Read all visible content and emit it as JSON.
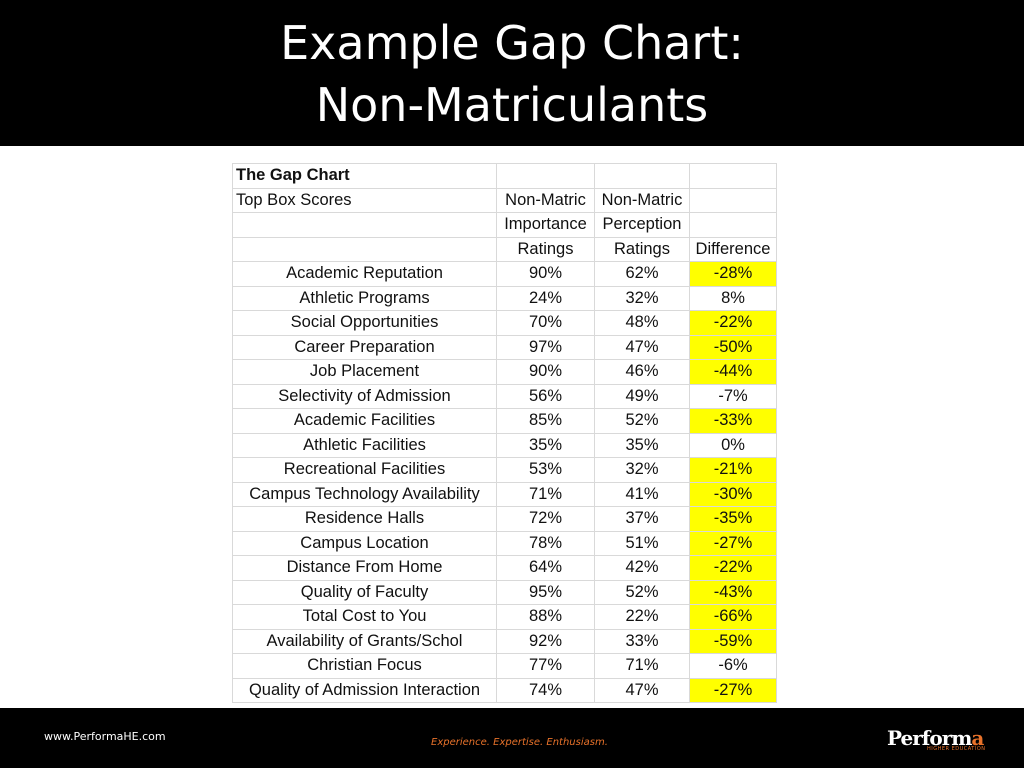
{
  "title": {
    "line1": "Example Gap Chart:",
    "line2": "Non-Matriculants"
  },
  "table": {
    "caption": "The Gap Chart",
    "header_rows": [
      [
        "Top Box Scores",
        "Non-Matric",
        "Non-Matric",
        ""
      ],
      [
        "",
        "Importance",
        "Perception",
        ""
      ],
      [
        "",
        "Ratings",
        "Ratings",
        "Difference"
      ]
    ],
    "rows": [
      {
        "label": "Academic Reputation",
        "importance": "90%",
        "perception": "62%",
        "difference": "-28%",
        "highlight": true
      },
      {
        "label": "Athletic Programs",
        "importance": "24%",
        "perception": "32%",
        "difference": "8%",
        "highlight": false
      },
      {
        "label": "Social Opportunities",
        "importance": "70%",
        "perception": "48%",
        "difference": "-22%",
        "highlight": true
      },
      {
        "label": "Career Preparation",
        "importance": "97%",
        "perception": "47%",
        "difference": "-50%",
        "highlight": true
      },
      {
        "label": "Job Placement",
        "importance": "90%",
        "perception": "46%",
        "difference": "-44%",
        "highlight": true
      },
      {
        "label": "Selectivity of Admission",
        "importance": "56%",
        "perception": "49%",
        "difference": "-7%",
        "highlight": false
      },
      {
        "label": "Academic Facilities",
        "importance": "85%",
        "perception": "52%",
        "difference": "-33%",
        "highlight": true
      },
      {
        "label": "Athletic Facilities",
        "importance": "35%",
        "perception": "35%",
        "difference": "0%",
        "highlight": false
      },
      {
        "label": "Recreational Facilities",
        "importance": "53%",
        "perception": "32%",
        "difference": "-21%",
        "highlight": true
      },
      {
        "label": "Campus Technology Availability",
        "importance": "71%",
        "perception": "41%",
        "difference": "-30%",
        "highlight": true
      },
      {
        "label": "Residence Halls",
        "importance": "72%",
        "perception": "37%",
        "difference": "-35%",
        "highlight": true
      },
      {
        "label": "Campus Location",
        "importance": "78%",
        "perception": "51%",
        "difference": "-27%",
        "highlight": true
      },
      {
        "label": "Distance From Home",
        "importance": "64%",
        "perception": "42%",
        "difference": "-22%",
        "highlight": true
      },
      {
        "label": "Quality of Faculty",
        "importance": "95%",
        "perception": "52%",
        "difference": "-43%",
        "highlight": true
      },
      {
        "label": "Total Cost to You",
        "importance": "88%",
        "perception": "22%",
        "difference": "-66%",
        "highlight": true
      },
      {
        "label": "Availability of Grants/Schol",
        "importance": "92%",
        "perception": "33%",
        "difference": "-59%",
        "highlight": true
      },
      {
        "label": "Christian Focus",
        "importance": "77%",
        "perception": "71%",
        "difference": "-6%",
        "highlight": false
      },
      {
        "label": "Quality of Admission Interaction",
        "importance": "74%",
        "perception": "47%",
        "difference": "-27%",
        "highlight": true
      }
    ],
    "highlight_color": "#ffff00"
  },
  "footer": {
    "website": "www.PerformaHE.com",
    "tagline": "Experience. Expertise. Enthusiasm.",
    "logo_main": "Perform",
    "logo_accent": "a",
    "logo_sub": "HIGHER EDUCATION"
  }
}
